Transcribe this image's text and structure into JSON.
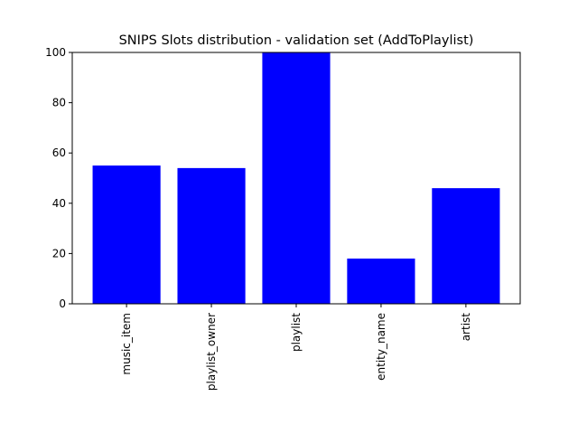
{
  "chart_data": {
    "type": "bar",
    "title": "SNIPS Slots distribution - validation set (AddToPlaylist)",
    "xlabel": "",
    "ylabel": "",
    "categories": [
      "music_item",
      "playlist_owner",
      "playlist",
      "entity_name",
      "artist"
    ],
    "values": [
      55,
      54,
      100,
      18,
      46
    ],
    "ylim": [
      0,
      100
    ],
    "yticks": [
      "0",
      "20",
      "40",
      "60",
      "80",
      "100"
    ],
    "bar_color": "#0000ff",
    "grid": false,
    "legend": "none"
  }
}
